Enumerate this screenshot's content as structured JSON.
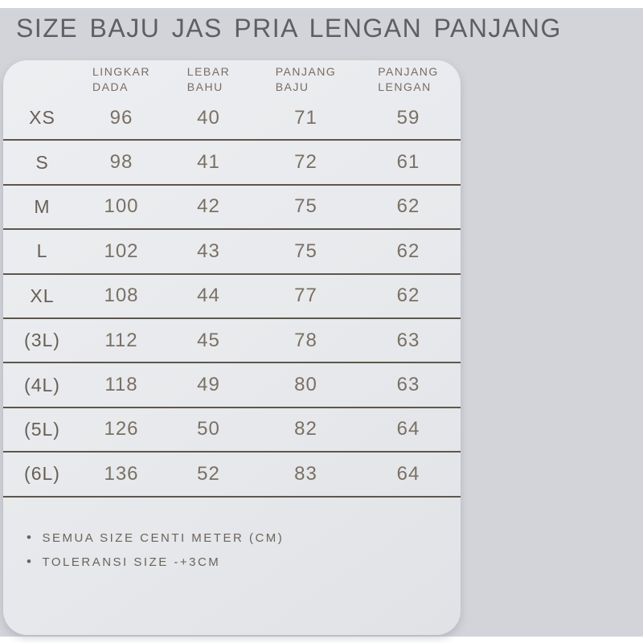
{
  "title": "SIZE BAJU JAS PRIA LENGAN PANJANG",
  "table": {
    "columns": [
      {
        "line1": "LINGKAR",
        "line2": "DADA"
      },
      {
        "line1": "LEBAR",
        "line2": "BAHU"
      },
      {
        "line1": "PANJANG",
        "line2": "BAJU"
      },
      {
        "line1": "PANJANG",
        "line2": "LENGAN"
      }
    ],
    "rows": [
      {
        "label": "XS",
        "values": [
          "96",
          "40",
          "71",
          "59"
        ]
      },
      {
        "label": "S",
        "values": [
          "98",
          "41",
          "72",
          "61"
        ]
      },
      {
        "label": "M",
        "values": [
          "100",
          "42",
          "75",
          "62"
        ]
      },
      {
        "label": "L",
        "values": [
          "102",
          "43",
          "75",
          "62"
        ]
      },
      {
        "label": "XL",
        "values": [
          "108",
          "44",
          "77",
          "62"
        ]
      },
      {
        "label": "(3L)",
        "values": [
          "112",
          "45",
          "78",
          "63"
        ]
      },
      {
        "label": "(4L)",
        "values": [
          "118",
          "49",
          "80",
          "63"
        ]
      },
      {
        "label": "(5L)",
        "values": [
          "126",
          "50",
          "82",
          "64"
        ]
      },
      {
        "label": "(6L)",
        "values": [
          "136",
          "52",
          "83",
          "64"
        ]
      }
    ]
  },
  "notes": [
    {
      "icon": "•",
      "text": "SEMUA SIZE CENTI METER (CM)"
    },
    {
      "icon": "•",
      "text": "TOLERANSI SIZE -+3CM"
    }
  ],
  "colors": {
    "page_background": "#d2d4d9",
    "card_background": "#e8e9ec",
    "divider": "#5e564d",
    "title_text": "#5d5f65",
    "header_text": "#766d63",
    "value_text": "#7a7064",
    "note_text": "#6c635a"
  }
}
